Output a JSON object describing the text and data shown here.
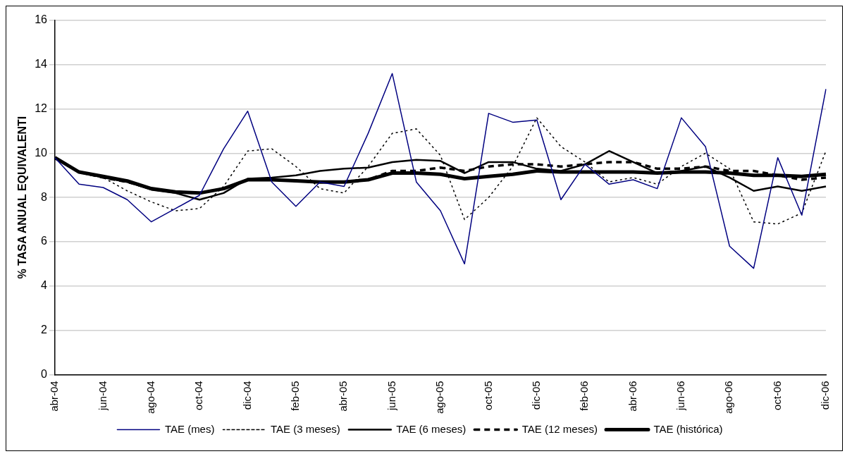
{
  "chart_data": {
    "type": "line",
    "ylabel": "% TASA ANUAL EQUIVALENTI",
    "categories": [
      "abr-04",
      null,
      "jun-04",
      null,
      "ago-04",
      null,
      "oct-04",
      null,
      "dic-04",
      null,
      "feb-05",
      null,
      "abr-05",
      null,
      "jun-05",
      null,
      "ago-05",
      null,
      "oct-05",
      null,
      "dic-05",
      null,
      "feb-06",
      null,
      "abr-06",
      null,
      "jun-06",
      null,
      "ago-06",
      null,
      "oct-06",
      null,
      "dic-06"
    ],
    "series": [
      {
        "name": "TAE (mes)",
        "color": "#000080",
        "line_style": "solid",
        "values": [
          9.8,
          8.6,
          8.45,
          7.9,
          6.9,
          7.5,
          8.1,
          10.2,
          11.9,
          8.7,
          7.6,
          8.7,
          8.5,
          10.9,
          13.6,
          8.7,
          7.4,
          5.0,
          11.8,
          11.4,
          11.5,
          7.9,
          9.5,
          8.6,
          8.8,
          8.4,
          11.6,
          10.3,
          5.8,
          4.8,
          9.8,
          7.2,
          12.9
        ]
      },
      {
        "name": "TAE (3 meses)",
        "color": "#000000",
        "line_style": "dotted",
        "values": [
          9.8,
          9.1,
          8.9,
          8.3,
          7.8,
          7.4,
          7.5,
          8.5,
          10.1,
          10.2,
          9.4,
          8.4,
          8.2,
          9.4,
          10.9,
          11.1,
          9.9,
          7.0,
          8.0,
          9.4,
          11.6,
          10.3,
          9.6,
          8.7,
          8.9,
          8.6,
          9.4,
          10.0,
          9.3,
          6.9,
          6.8,
          7.3,
          10.1
        ]
      },
      {
        "name": "TAE (6 meses)",
        "color": "#000000",
        "line_style": "solid",
        "values": [
          9.8,
          9.15,
          8.9,
          8.7,
          8.35,
          8.2,
          7.9,
          8.2,
          8.85,
          8.9,
          9.0,
          9.2,
          9.3,
          9.35,
          9.6,
          9.7,
          9.65,
          9.1,
          9.6,
          9.6,
          9.3,
          9.2,
          9.5,
          10.1,
          9.6,
          9.1,
          9.2,
          9.4,
          8.9,
          8.3,
          8.5,
          8.3,
          8.5
        ]
      },
      {
        "name": "TAE (12 meses)",
        "color": "#000000",
        "line_style": "dashed",
        "values": [
          9.8,
          9.15,
          8.9,
          8.7,
          8.4,
          8.25,
          8.2,
          8.4,
          8.8,
          8.8,
          8.75,
          8.7,
          8.7,
          8.8,
          9.2,
          9.2,
          9.35,
          9.2,
          9.4,
          9.5,
          9.5,
          9.4,
          9.5,
          9.6,
          9.6,
          9.3,
          9.3,
          9.4,
          9.2,
          9.2,
          9.0,
          8.8,
          8.9
        ]
      },
      {
        "name": "TAE (histórica)",
        "color": "#000000",
        "line_style": "solid",
        "values": [
          9.8,
          9.15,
          8.95,
          8.75,
          8.4,
          8.25,
          8.2,
          8.4,
          8.8,
          8.8,
          8.75,
          8.7,
          8.7,
          8.8,
          9.1,
          9.1,
          9.05,
          8.85,
          8.95,
          9.05,
          9.2,
          9.15,
          9.15,
          9.15,
          9.15,
          9.1,
          9.15,
          9.15,
          9.1,
          9.0,
          9.0,
          8.95,
          9.05
        ]
      }
    ],
    "ylim": [
      0,
      16
    ],
    "yticks": [
      0,
      2,
      4,
      6,
      8,
      10,
      12,
      14,
      16
    ],
    "grid": "y",
    "legend": "bottom",
    "marker": "none"
  }
}
